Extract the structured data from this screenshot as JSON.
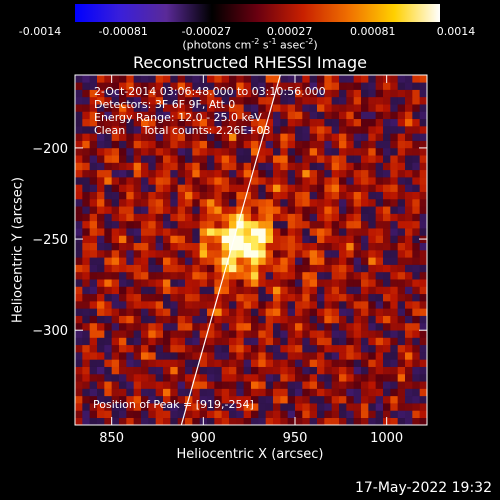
{
  "colorbar": {
    "tick_labels": [
      "-0.0014",
      "-0.00081",
      "-0.00027",
      "0.00027",
      "0.00081",
      "0.0014"
    ],
    "units_prefix": "(photons cm",
    "units_exp1": "-2",
    "units_mid1": " s",
    "units_exp2": "-1",
    "units_mid2": " asec",
    "units_exp3": "-2",
    "units_suffix": ")",
    "colors": [
      "#0000ff",
      "#3a1fd9",
      "#5a2a98",
      "#000000",
      "#6a0010",
      "#c82000",
      "#f07000",
      "#ffd000",
      "#ffffff"
    ]
  },
  "chart_data": {
    "type": "heatmap",
    "title": "Reconstructed RHESSI Image",
    "xlabel": "Heliocentric X (arcsec)",
    "ylabel": "Heliocentric Y (arcsec)",
    "xlim": [
      830,
      1022
    ],
    "ylim": [
      -352,
      -160
    ],
    "x_ticks": [
      850,
      900,
      950,
      1000
    ],
    "y_ticks": [
      -200,
      -250,
      -300
    ],
    "x_tick_labels": [
      "850",
      "900",
      "950",
      "1000"
    ],
    "y_tick_labels": [
      "−200",
      "−250",
      "−300"
    ],
    "peak": {
      "x": 919,
      "y": -254
    },
    "limb_line": [
      [
        888,
        -352
      ],
      [
        942,
        -160
      ]
    ],
    "pixel_size_arcsec": 4,
    "info_lines": [
      "2-Oct-2014 03:06:48.000 to 03:10:56.000",
      "Detectors: 3F 6F 9F, Att 0",
      "Energy Range: 12.0 - 25.0 keV",
      "Clean     Total counts: 2.26E+03"
    ],
    "peak_label": "Position of Peak = [919,-254]"
  },
  "timestamp": "17-May-2022 19:32"
}
